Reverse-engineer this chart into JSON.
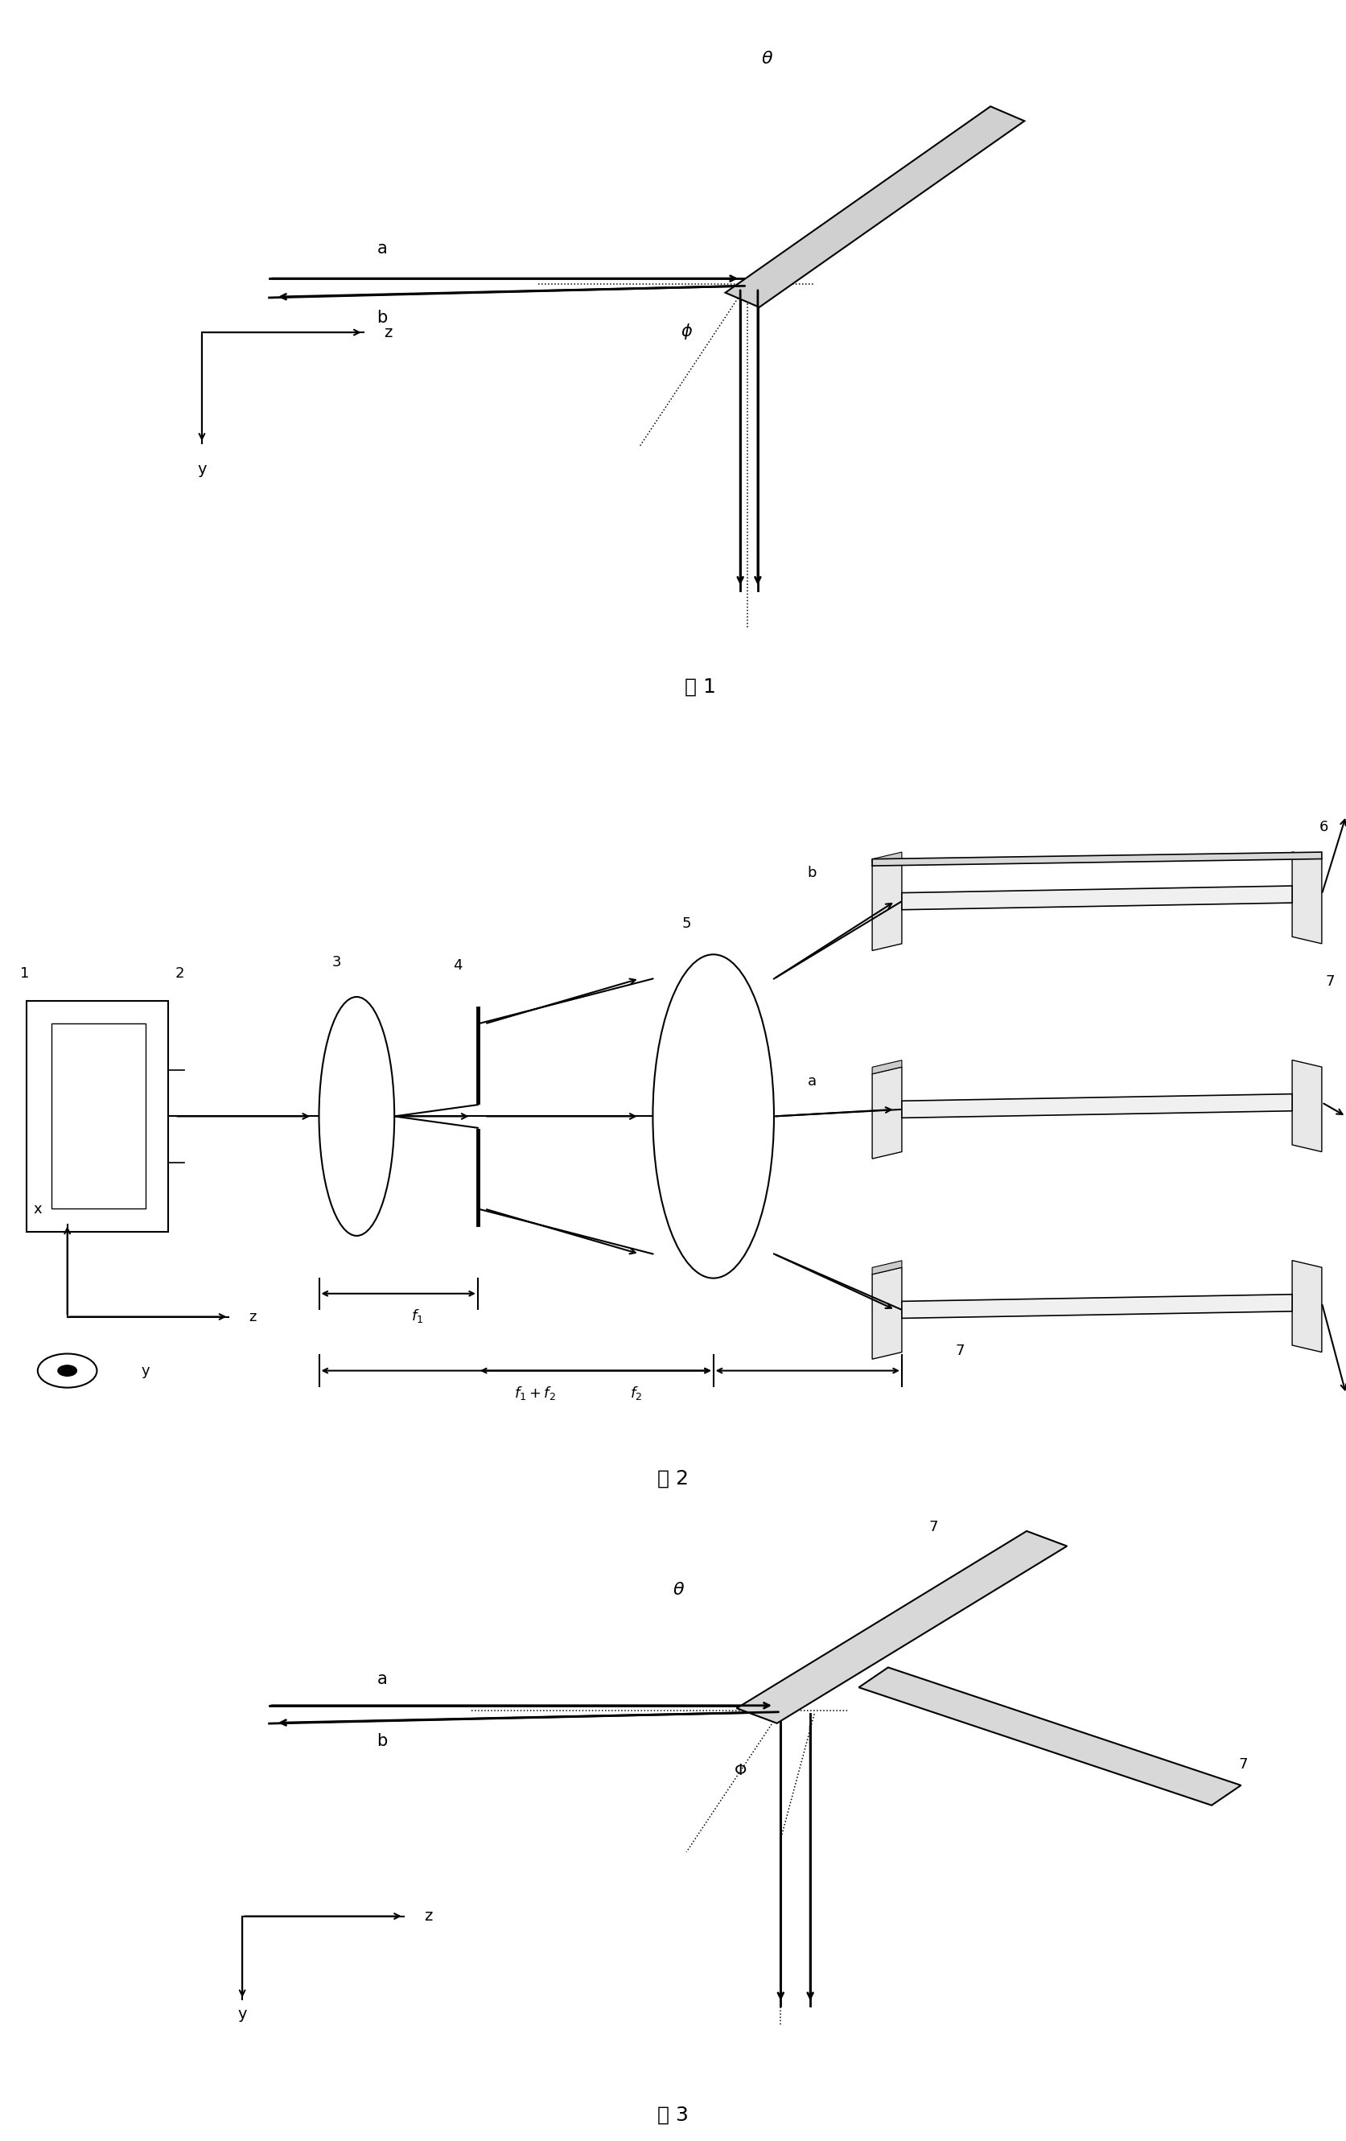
{
  "fig_width": 16.73,
  "fig_height": 26.61,
  "bg_color": "#ffffff",
  "line_color": "#000000",
  "fig1_caption": "图 1",
  "fig2_caption": "图 2",
  "fig3_caption": "图 3"
}
